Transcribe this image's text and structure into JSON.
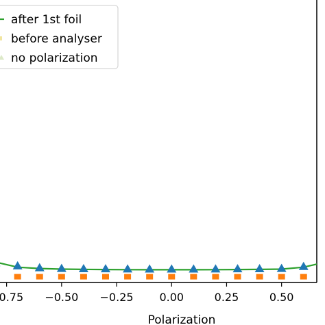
{
  "chart_data": {
    "type": "line",
    "xlabel": "Polarization",
    "ylabel": "",
    "xlim": [
      -0.78,
      0.66
    ],
    "ylim": [
      -0.02,
      2.2
    ],
    "xticks": [
      "−0.75",
      "−0.50",
      "−0.25",
      "0.00",
      "0.25",
      "0.50"
    ],
    "xtick_values": [
      -0.75,
      -0.5,
      -0.25,
      0.0,
      0.25,
      0.5
    ],
    "legend_position": "upper-left",
    "x": [
      -0.8,
      -0.7,
      -0.6,
      -0.5,
      -0.4,
      -0.3,
      -0.2,
      -0.1,
      0.0,
      0.1,
      0.2,
      0.3,
      0.4,
      0.5,
      0.6,
      0.7
    ],
    "series": [
      {
        "name": "after 1st foil",
        "marker": "line",
        "color": "#2ca02c",
        "values": [
          0.14,
          0.1,
          0.09,
          0.085,
          0.083,
          0.082,
          0.081,
          0.08,
          0.08,
          0.08,
          0.081,
          0.082,
          0.083,
          0.085,
          0.1,
          0.14
        ]
      },
      {
        "name": "before analyser",
        "marker": "square",
        "color": "#ff7f0e",
        "values": [
          0.02,
          0.02,
          0.02,
          0.02,
          0.02,
          0.02,
          0.02,
          0.02,
          0.02,
          0.02,
          0.02,
          0.02,
          0.02,
          0.02,
          0.02,
          0.02
        ]
      },
      {
        "name": "no polarization",
        "marker": "triangle",
        "color": "#1f77b4",
        "values": [
          0.135,
          0.11,
          0.095,
          0.09,
          0.088,
          0.087,
          0.086,
          0.085,
          0.085,
          0.085,
          0.086,
          0.087,
          0.088,
          0.09,
          0.105,
          0.135
        ]
      }
    ]
  }
}
